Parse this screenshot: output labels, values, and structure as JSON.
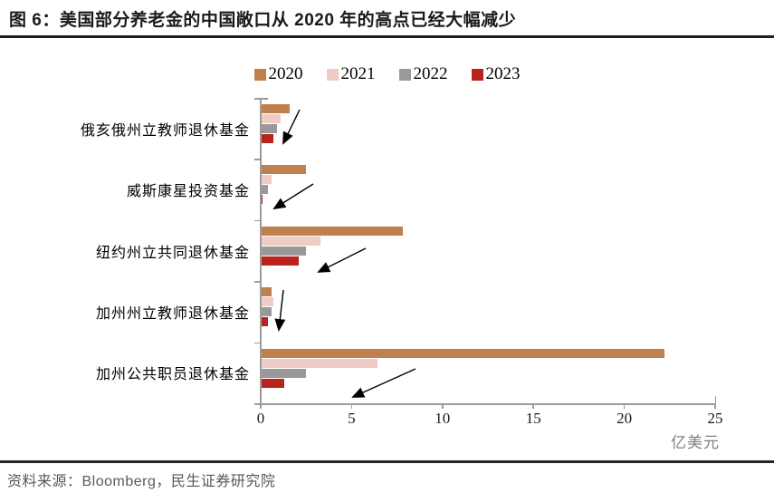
{
  "header": {
    "title": "图 6：美国部分养老金的中国敞口从 2020 年的高点已经大幅减少"
  },
  "footer": {
    "source": "资料来源：Bloomberg，民生证券研究院"
  },
  "chart_data": {
    "type": "bar",
    "orientation": "horizontal",
    "title": "",
    "xlabel": "亿美元",
    "ylabel": "",
    "unit_label": "亿美元",
    "categories": [
      "俄亥俄州立教师退休基金",
      "威斯康星投资基金",
      "纽约州立共同退休基金",
      "加州州立教师退休基金",
      "加州公共职员退休基金"
    ],
    "series": [
      {
        "name": "2020",
        "color": "#C0804D",
        "values": [
          1.6,
          2.5,
          7.8,
          0.6,
          22.2
        ]
      },
      {
        "name": "2021",
        "color": "#F1CBC6",
        "values": [
          1.1,
          0.6,
          3.3,
          0.7,
          6.4
        ]
      },
      {
        "name": "2022",
        "color": "#999999",
        "values": [
          0.9,
          0.4,
          2.5,
          0.6,
          2.5
        ]
      },
      {
        "name": "2023",
        "color": "#B8231B",
        "values": [
          0.7,
          0.1,
          2.1,
          0.4,
          1.3
        ]
      }
    ],
    "x_ticks": [
      0,
      5,
      10,
      15,
      20,
      25
    ],
    "xlim": [
      0,
      25
    ],
    "legend_position": "top-center",
    "grid": false,
    "axis_color": "#9b9b9b"
  },
  "annotations": {
    "arrows": [
      {
        "from": [
          331,
          121
        ],
        "to": [
          313,
          158
        ]
      },
      {
        "from": [
          346,
          203
        ],
        "to": [
          303,
          230
        ]
      },
      {
        "from": [
          404,
          274
        ],
        "to": [
          352,
          300
        ]
      },
      {
        "from": [
          313,
          320
        ],
        "to": [
          308,
          364
        ]
      },
      {
        "from": [
          459,
          407
        ],
        "to": [
          390,
          438
        ]
      }
    ]
  }
}
